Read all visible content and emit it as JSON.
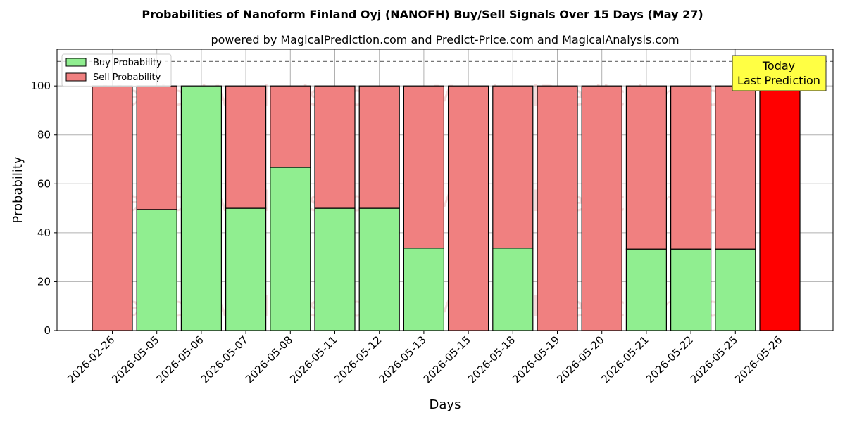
{
  "chart_data": {
    "type": "bar",
    "title": "Probabilities of Nanoform Finland Oyj (NANOFH) Buy/Sell Signals Over 15 Days (May 27)",
    "subtitle": "powered by MagicalPrediction.com and Predict-Price.com and MagicalAnalysis.com",
    "xlabel": "Days",
    "ylabel": "Probability",
    "ylim": [
      0,
      115
    ],
    "yticks": [
      0,
      20,
      40,
      60,
      80,
      100
    ],
    "grid": true,
    "stacked": true,
    "legend_position": "top-left",
    "categories": [
      "2026-02-26",
      "2026-05-05",
      "2026-05-06",
      "2026-05-07",
      "2026-05-08",
      "2026-05-11",
      "2026-05-12",
      "2026-05-13",
      "2026-05-15",
      "2026-05-18",
      "2026-05-19",
      "2026-05-20",
      "2026-05-21",
      "2026-05-22",
      "2026-05-25",
      "2026-05-26"
    ],
    "series": [
      {
        "name": "Buy Probability",
        "color": "#90EE90",
        "values": [
          0,
          49.5,
          100,
          50,
          66.7,
          50,
          50,
          33.7,
          0,
          33.7,
          0,
          0,
          33.3,
          33.3,
          33.3,
          0
        ]
      },
      {
        "name": "Sell Probability",
        "color": "#F08080",
        "values": [
          100,
          50.5,
          0,
          50,
          33.3,
          50,
          50,
          66.3,
          100,
          66.3,
          100,
          100,
          66.7,
          66.7,
          66.7,
          100
        ]
      }
    ],
    "highlight": {
      "index": 15,
      "color": "#FF0000"
    },
    "reference_line": {
      "y": 110,
      "style": "dashed"
    },
    "annotation": {
      "line1": "Today",
      "line2": "Last Prediction",
      "background": "#FFFF44"
    },
    "watermarks": [
      "MagicalAnalysis.com",
      "MagicalPrediction.com"
    ]
  }
}
